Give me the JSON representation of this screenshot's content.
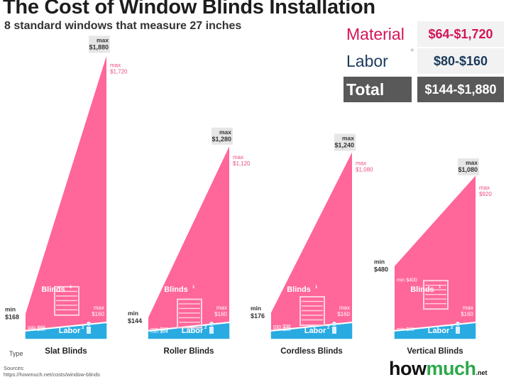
{
  "title": "The Cost of Window Blinds Installation",
  "subtitle": "8 standard windows that measure 27 inches",
  "summary": {
    "material_label": "Material",
    "material_value": "$64-$1,720",
    "labor_label": "Labor",
    "labor_value": "$80-$160",
    "total_label": "Total",
    "total_value": "$144-$1,880",
    "plus_sign": "+"
  },
  "chart_data": {
    "type": "area",
    "title": "The Cost of Window Blinds Installation",
    "subtitle": "8 standard windows that measure 27 inches",
    "xlabel": "Type",
    "ylabel": "",
    "ylim": [
      0,
      1900
    ],
    "categories": [
      "Slat Blinds",
      "Roller Blinds",
      "Cordless  Blinds",
      "Vertical  Blinds"
    ],
    "series": [
      {
        "name": "Blinds",
        "color": "#ff6699",
        "min": [
          88,
          64,
          96,
          400
        ],
        "max": [
          1720,
          1120,
          1080,
          920
        ]
      },
      {
        "name": "Labor",
        "color": "#29abe2",
        "min": [
          80,
          80,
          80,
          80
        ],
        "max": [
          160,
          160,
          160,
          160
        ]
      },
      {
        "name": "Total",
        "min": [
          168,
          144,
          176,
          480
        ],
        "max": [
          1880,
          1280,
          1240,
          1080
        ]
      }
    ],
    "labels": {
      "blinds": "Blinds",
      "labor": "Labor",
      "sup1": "1",
      "sup2": "2",
      "max_word": "max",
      "min_word": "min",
      "total_min_text": [
        "$168",
        "$144",
        "$176",
        "$480"
      ],
      "total_max_text": [
        "$1,880",
        "$1,280",
        "$1,240",
        "$1,080"
      ],
      "blinds_min_text": [
        "$88",
        "$64",
        "$96",
        "$400"
      ],
      "blinds_max_text": [
        "$1,720",
        "$1,120",
        "$1,080",
        "$920"
      ],
      "labor_min_text": [
        "$80",
        "$80",
        "$80",
        "$80"
      ],
      "labor_max_text": [
        "$160",
        "$160",
        "$160",
        "$160"
      ]
    }
  },
  "colors": {
    "pink": "#ff6699",
    "pink_label": "#e8507e",
    "blue": "#29abe2",
    "gray_box": "#e6e6e6"
  },
  "sources_label": "Sources:",
  "sources_url": "https://howmuch.net/costs/window-blinds",
  "logo": {
    "part1": "how",
    "part2": "much",
    "part3": ".net"
  }
}
